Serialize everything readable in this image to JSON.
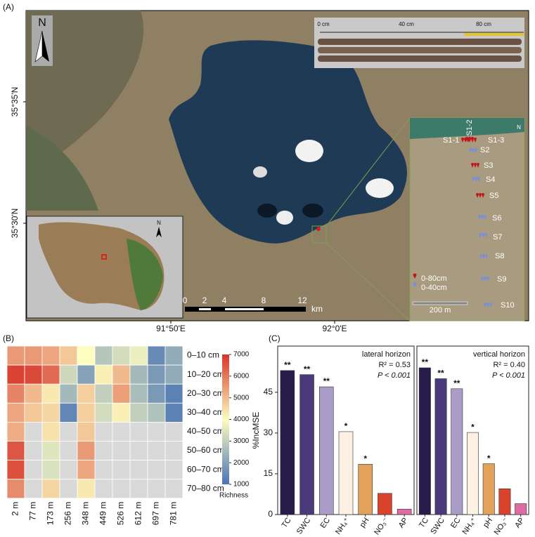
{
  "panel_a": {
    "label": "(A)",
    "north": "N",
    "core_ruler": [
      "0 cm",
      "40 cm",
      "80 cm"
    ],
    "lat_labels": [
      "35°35'N",
      "35°30'N"
    ],
    "lon_labels": [
      "91°50'E",
      "92°0'E"
    ],
    "scale_bar": {
      "ticks": [
        "0",
        "2",
        "4",
        "8",
        "12"
      ],
      "unit": "km"
    },
    "sites": [
      "S1-1",
      "S1-2",
      "S1-3",
      "S2",
      "S3",
      "S4",
      "S5",
      "S6",
      "S7",
      "S8",
      "S9",
      "S10"
    ],
    "legend": [
      "0-80cm",
      "0-40cm"
    ],
    "inset_scale": "200 m",
    "inset_north": "N"
  },
  "panel_labels": [
    "(B)",
    "(C)"
  ],
  "chart_data": [
    {
      "type": "heatmap",
      "categories": [
        "2 m",
        "77 m",
        "173 m",
        "256 m",
        "348 m",
        "449 m",
        "526 m",
        "612 m",
        "697 m",
        "781 m"
      ],
      "rows": [
        "0–10 cm",
        "10–20 cm",
        "20–30 cm",
        "30–40 cm",
        "40–50 cm",
        "50–60 cm",
        "60–70 cm",
        "70–80 cm"
      ],
      "values": [
        [
          5500,
          5500,
          5300,
          4800,
          4000,
          2800,
          3300,
          3700,
          1500,
          2200
        ],
        [
          6800,
          6700,
          6200,
          3200,
          2000,
          4200,
          5000,
          2500,
          1800,
          2200
        ],
        [
          5800,
          5000,
          4300,
          2500,
          4700,
          3000,
          5400,
          2600,
          1800,
          1300
        ],
        [
          5300,
          4800,
          4600,
          1400,
          4700,
          3300,
          4200,
          3000,
          2700,
          1300
        ],
        [
          5200,
          null,
          4400,
          null,
          4800,
          null,
          null,
          null,
          null,
          null
        ],
        [
          6500,
          null,
          3500,
          null,
          5500,
          null,
          null,
          null,
          null,
          null
        ],
        [
          6600,
          null,
          3400,
          null,
          5300,
          null,
          null,
          null,
          null,
          null
        ],
        [
          5700,
          null,
          4600,
          null,
          4300,
          null,
          null,
          null,
          null,
          null
        ]
      ],
      "colormap": [
        "#4a74b4",
        "#fdfdc0",
        "#d7352a"
      ],
      "missing_color": "#d9d9d9",
      "clim": [
        1000,
        7000
      ],
      "cticks": [
        1000,
        2000,
        3000,
        4000,
        5000,
        6000,
        7000
      ],
      "colorbar_label": "Richness"
    },
    {
      "type": "bar",
      "ylabel": "%IncMSE",
      "categories": [
        "TC",
        "SWC",
        "EC",
        "NH₄⁺",
        "pH",
        "NO₃⁻",
        "AP"
      ],
      "values": [
        53,
        51.5,
        47,
        30.5,
        18.5,
        7.8,
        2
      ],
      "significance": [
        "**",
        "**",
        "**",
        "*",
        "*",
        null,
        null
      ],
      "colors": [
        "#281d4a",
        "#4a3a7c",
        "#a99cc6",
        "#fdf1e4",
        "#e3a25a",
        "#d9432b",
        "#e06aa2"
      ],
      "ylim": [
        0,
        62
      ],
      "yticks": [
        0,
        15,
        30,
        45
      ],
      "annotations": [
        "lateral horizon",
        "R² = 0.53",
        "P < 0.001"
      ]
    },
    {
      "type": "bar",
      "categories": [
        "TC",
        "SWC",
        "EC",
        "NH₄⁺",
        "pH",
        "NO₃⁻",
        "AP"
      ],
      "values": [
        54,
        50,
        46.3,
        30.2,
        18.7,
        9.5,
        4
      ],
      "significance": [
        "**",
        "**",
        "**",
        "*",
        "*",
        null,
        null
      ],
      "colors": [
        "#281d4a",
        "#4a3a7c",
        "#a99cc6",
        "#fdf1e4",
        "#e3a25a",
        "#d9432b",
        "#e06aa2"
      ],
      "ylim": [
        0,
        62
      ],
      "annotations": [
        "vertical horizon",
        "R² = 0.40",
        "P < 0.001"
      ]
    }
  ]
}
